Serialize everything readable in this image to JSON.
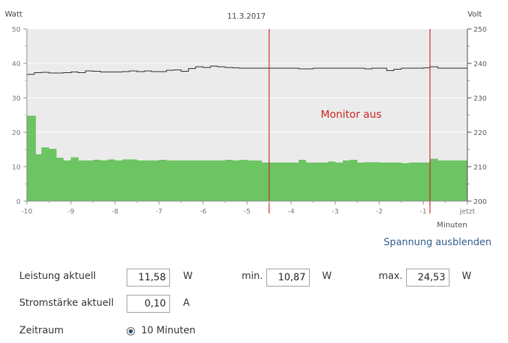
{
  "chart_data": {
    "type": "area",
    "title": "11.3.2017",
    "y_left_label": "Watt",
    "y_right_label": "Volt",
    "x_unit_label": "Minuten",
    "x_ticks": [
      "-10",
      "-9",
      "-8",
      "-7",
      "-6",
      "-5",
      "-4",
      "-3",
      "-2",
      "-1",
      "jetzt"
    ],
    "y_left_ticks": [
      "50",
      "40",
      "30",
      "20",
      "10",
      "0"
    ],
    "y_right_ticks": [
      "250",
      "240",
      "230",
      "220",
      "210",
      "200"
    ],
    "xlim": [
      -10,
      0
    ],
    "ylim_left": [
      0,
      50
    ],
    "ylim_right": [
      200,
      250
    ],
    "annotation": "Monitor aus",
    "markers_x": [
      -4.5,
      -0.85
    ],
    "series": [
      {
        "name": "Leistung",
        "unit": "W",
        "color": "#6cc462",
        "x": [
          -10,
          -9.8,
          -9.67,
          -9.5,
          -9.33,
          -9.17,
          -9.0,
          -8.83,
          -8.67,
          -8.5,
          -8.33,
          -8.17,
          -8.0,
          -7.83,
          -7.67,
          -7.5,
          -7.33,
          -7.17,
          -7.0,
          -6.83,
          -6.67,
          -6.5,
          -6.33,
          -6.17,
          -6.0,
          -5.83,
          -5.67,
          -5.5,
          -5.33,
          -5.17,
          -5.0,
          -4.83,
          -4.67,
          -4.5,
          -4.33,
          -4.17,
          -4.0,
          -3.83,
          -3.67,
          -3.5,
          -3.33,
          -3.17,
          -3.0,
          -2.83,
          -2.67,
          -2.5,
          -2.33,
          -2.17,
          -2.0,
          -1.83,
          -1.67,
          -1.5,
          -1.33,
          -1.17,
          -1.0,
          -0.85,
          -0.67,
          -0.5,
          -0.33,
          -0.17
        ],
        "values": [
          24.8,
          13.6,
          15.6,
          15.2,
          12.6,
          11.8,
          12.7,
          11.8,
          11.8,
          12.0,
          11.8,
          12.1,
          11.8,
          12.1,
          12.1,
          11.8,
          11.8,
          11.8,
          12.0,
          11.8,
          11.8,
          11.8,
          11.8,
          11.8,
          11.8,
          11.8,
          11.8,
          12.0,
          11.8,
          12.0,
          11.8,
          11.8,
          11.2,
          11.2,
          11.2,
          11.2,
          11.2,
          12.0,
          11.2,
          11.2,
          11.2,
          11.5,
          11.2,
          11.8,
          12.0,
          11.2,
          11.3,
          11.3,
          11.2,
          11.2,
          11.2,
          11.0,
          11.2,
          11.2,
          11.2,
          12.3,
          11.8,
          11.8,
          11.8,
          11.8
        ]
      },
      {
        "name": "Spannung",
        "unit": "V",
        "color": "#222222",
        "x": [
          -10,
          -9.83,
          -9.67,
          -9.5,
          -9.33,
          -9.17,
          -9.0,
          -8.83,
          -8.67,
          -8.5,
          -8.33,
          -8.17,
          -8.0,
          -7.83,
          -7.67,
          -7.5,
          -7.33,
          -7.17,
          -7.0,
          -6.83,
          -6.67,
          -6.5,
          -6.33,
          -6.17,
          -6.0,
          -5.83,
          -5.67,
          -5.5,
          -5.33,
          -5.17,
          -5.0,
          -4.83,
          -4.67,
          -4.5,
          -4.33,
          -4.17,
          -4.0,
          -3.83,
          -3.67,
          -3.5,
          -3.33,
          -3.17,
          -3.0,
          -2.83,
          -2.67,
          -2.5,
          -2.33,
          -2.17,
          -2.0,
          -1.83,
          -1.67,
          -1.5,
          -1.33,
          -1.17,
          -1.0,
          -0.85,
          -0.67,
          -0.5,
          -0.33,
          -0.17
        ],
        "values": [
          236.8,
          237.3,
          237.4,
          237.2,
          237.2,
          237.3,
          237.5,
          237.3,
          237.8,
          237.7,
          237.5,
          237.5,
          237.5,
          237.6,
          237.8,
          237.6,
          237.8,
          237.6,
          237.6,
          238.0,
          238.1,
          237.7,
          238.5,
          239.0,
          238.8,
          239.2,
          239.0,
          238.8,
          238.7,
          238.6,
          238.6,
          238.6,
          238.6,
          238.6,
          238.6,
          238.6,
          238.6,
          238.4,
          238.4,
          238.6,
          238.6,
          238.6,
          238.6,
          238.6,
          238.6,
          238.6,
          238.4,
          238.6,
          238.6,
          237.9,
          238.3,
          238.6,
          238.6,
          238.6,
          238.7,
          239.0,
          238.6,
          238.6,
          238.6,
          238.6
        ]
      }
    ],
    "grid": true,
    "background": "#ebebeb"
  },
  "controls": {
    "toggle_voltage": "Spannung ausblenden",
    "power_label": "Leistung aktuell",
    "power_value": "11,58",
    "power_unit": "W",
    "min_label": "min.",
    "min_value": "10,87",
    "min_unit": "W",
    "max_label": "max.",
    "max_value": "24,53",
    "max_unit": "W",
    "current_label": "Stromstärke aktuell",
    "current_value": "0,10",
    "current_unit": "A",
    "range_label": "Zeitraum",
    "range_option": "10 Minuten"
  }
}
